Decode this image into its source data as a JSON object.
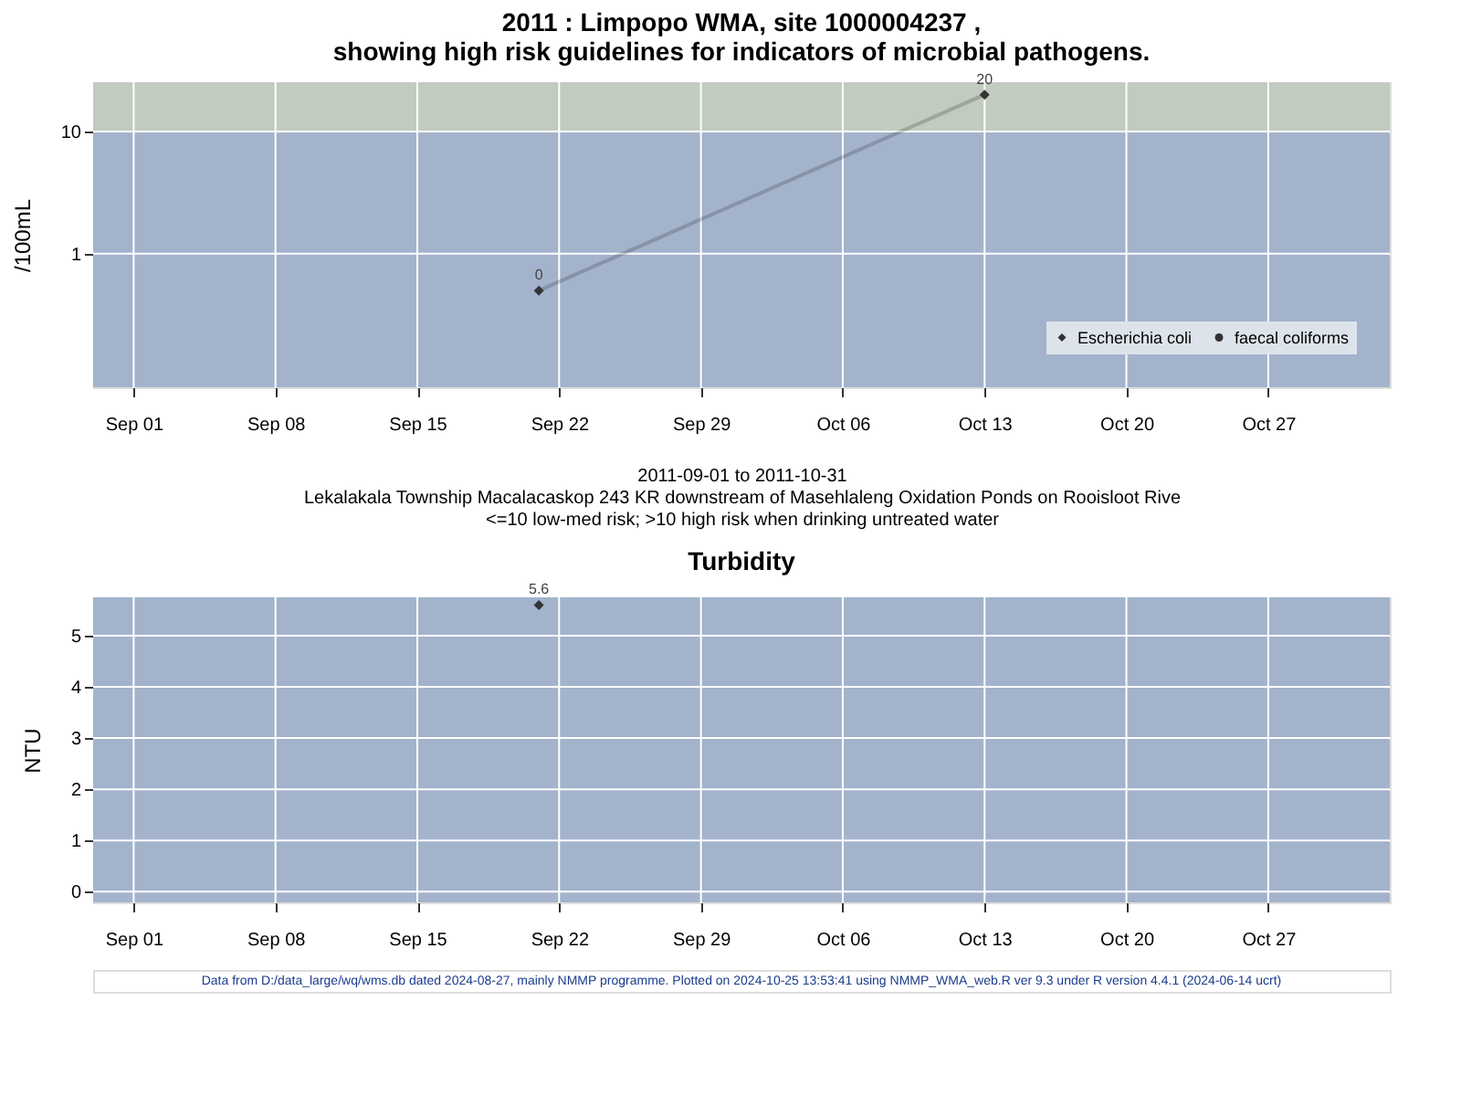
{
  "chart_data": [
    {
      "type": "line",
      "title": "2011 : Limpopo WMA, site 1000004237 ,\nshowing high risk guidelines for indicators of microbial pathogens.",
      "xlabel": "2011-09-01 to 2011-10-31\nLekalakala Township Macalacaskop 243 KR downstream of Masehlaleng Oxidation Ponds on Rooisloot Rive\n<=10 low-med risk; >10 high risk when drinking untreated water",
      "ylabel": "/100mL",
      "series": [
        {
          "name": "Escherichia coli",
          "color": "#333333",
          "marker": "diamond",
          "x": [
            "2011-09-21",
            "2011-10-13"
          ],
          "values": [
            0.5,
            20
          ],
          "value_labels": [
            "0",
            "20"
          ]
        },
        {
          "name": "faecal coliforms",
          "color": "#333333",
          "marker": "circle"
        }
      ],
      "log": "y",
      "xlim": [
        "2011-08-30",
        "2011-11-02"
      ],
      "ylim": [
        0.081,
        25.3
      ],
      "yticks": [
        1,
        10
      ],
      "xticks": [
        {
          "value": "2011-09-01",
          "label": "Sep 01"
        },
        {
          "value": "2011-09-08",
          "label": "Sep 08"
        },
        {
          "value": "2011-09-15",
          "label": "Sep 15"
        },
        {
          "value": "2011-09-22",
          "label": "Sep 22"
        },
        {
          "value": "2011-09-29",
          "label": "Sep 29"
        },
        {
          "value": "2011-10-06",
          "label": "Oct 06"
        },
        {
          "value": "2011-10-13",
          "label": "Oct 13"
        },
        {
          "value": "2011-10-20",
          "label": "Oct 20"
        },
        {
          "value": "2011-10-27",
          "label": "Oct 27"
        }
      ],
      "bands": [
        {
          "axis": "y",
          "from": 0.081,
          "to": 10,
          "color": "#a3b3cc"
        },
        {
          "axis": "y",
          "from": 10,
          "to": 25.3,
          "color": "#c2cbbf"
        }
      ],
      "grid": true,
      "legend": "bottom right"
    },
    {
      "type": "scatter",
      "title": "Turbidity",
      "ylabel": "NTU",
      "series": [
        {
          "color": "#333333",
          "marker": "diamond",
          "x": [
            "2011-09-21"
          ],
          "values": [
            5.6
          ]
        }
      ],
      "data_labels": true,
      "xlim": [
        "2011-08-30",
        "2011-11-02"
      ],
      "ylim": [
        -0.21,
        5.75
      ],
      "yticks": [
        0,
        1,
        2,
        3,
        4,
        5
      ],
      "xticks": [
        {
          "value": "2011-09-01",
          "label": "Sep 01"
        },
        {
          "value": "2011-09-08",
          "label": "Sep 08"
        },
        {
          "value": "2011-09-15",
          "label": "Sep 15"
        },
        {
          "value": "2011-09-22",
          "label": "Sep 22"
        },
        {
          "value": "2011-09-29",
          "label": "Sep 29"
        },
        {
          "value": "2011-10-06",
          "label": "Oct 06"
        },
        {
          "value": "2011-10-13",
          "label": "Oct 13"
        },
        {
          "value": "2011-10-20",
          "label": "Oct 20"
        },
        {
          "value": "2011-10-27",
          "label": "Oct 27"
        }
      ],
      "bands": [
        {
          "axis": "y",
          "from": -0.21,
          "to": 5.75,
          "color": "#a3b3cc"
        }
      ],
      "grid": true,
      "annotations": [
        "Data from D:/data_large/wq/wms.db dated 2024-08-27, mainly NMMP programme. Plotted on 2024-10-25 13:53:41 using NMMP_WMA_web.R ver 9.3 under R version 4.4.1 (2024-06-14 ucrt)"
      ]
    }
  ]
}
